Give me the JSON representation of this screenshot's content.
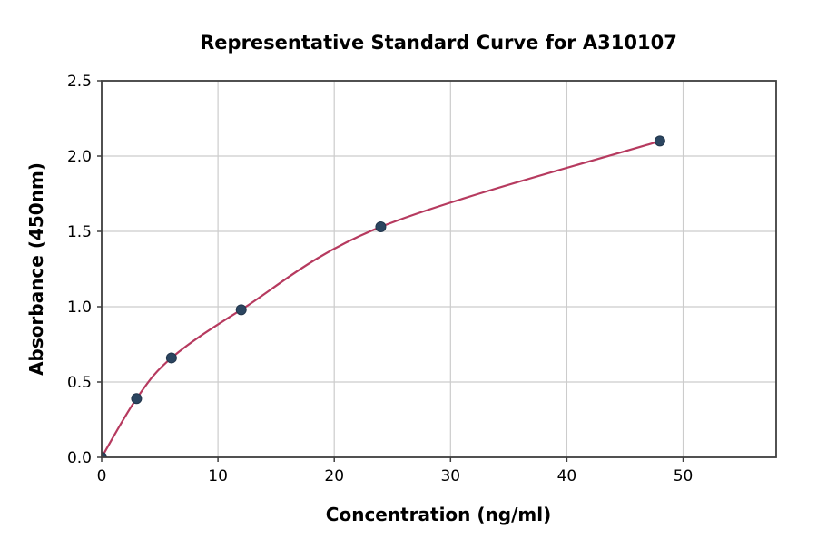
{
  "chart_data": {
    "type": "scatter",
    "title": "Representative Standard Curve for A310107",
    "xlabel": "Concentration (ng/ml)",
    "ylabel": "Absorbance (450nm)",
    "xlim": [
      0,
      58
    ],
    "ylim": [
      0,
      2.5
    ],
    "xticks": [
      0,
      10,
      20,
      30,
      40,
      50
    ],
    "xtick_labels": [
      "0",
      "10",
      "20",
      "30",
      "40",
      "50"
    ],
    "yticks": [
      0,
      0.5,
      1.0,
      1.5,
      2.0,
      2.5
    ],
    "ytick_labels": [
      "0.0",
      "0.5",
      "1.0",
      "1.5",
      "2.0",
      "2.5"
    ],
    "grid": true,
    "legend": "none",
    "series": [
      {
        "name": "standards",
        "x": [
          0,
          3,
          6,
          12,
          24,
          48
        ],
        "y": [
          0.0,
          0.39,
          0.66,
          0.98,
          1.53,
          2.1
        ]
      }
    ],
    "curve": {
      "name": "fitted-standard-curve",
      "through_points": true
    },
    "colors": {
      "curve": "#b63a5f",
      "marker": "#2b4560",
      "marker_edge": "#22364c",
      "grid": "#cccccc",
      "spine": "#3f3f3f",
      "text": "#000000",
      "background": "#ffffff"
    }
  }
}
